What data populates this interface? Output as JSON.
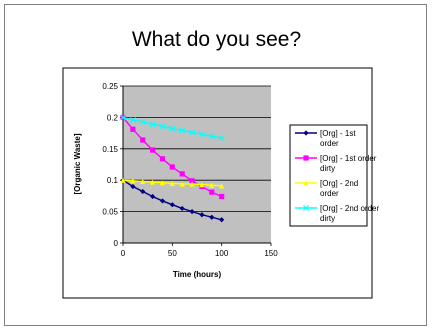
{
  "slide": {
    "title": "What do you see?"
  },
  "chart_data": {
    "type": "line",
    "title": "",
    "xlabel": "Time (hours)",
    "ylabel": "[Organic Waste]",
    "xlim": [
      0,
      150
    ],
    "ylim": [
      0,
      0.25
    ],
    "x_ticks": [
      0,
      50,
      100,
      150
    ],
    "x_tick_labels": [
      "0",
      "50",
      "100",
      "150"
    ],
    "y_ticks": [
      0,
      0.05,
      0.1,
      0.15,
      0.2,
      0.25
    ],
    "y_tick_labels": [
      "0",
      "0.05",
      "0.1",
      "0.15",
      "0.2",
      "0.25"
    ],
    "grid": "horizontal",
    "plot_background": "#c0c0c0",
    "legend_position": "right",
    "x": [
      0,
      10,
      20,
      30,
      40,
      50,
      60,
      70,
      80,
      90,
      100
    ],
    "series": [
      {
        "name": "[Org] - 1st order",
        "color": "#000080",
        "marker": "diamond",
        "values": [
          0.1,
          0.09,
          0.082,
          0.074,
          0.067,
          0.061,
          0.055,
          0.05,
          0.045,
          0.041,
          0.037
        ]
      },
      {
        "name": "[Org] - 1st order dirty",
        "color": "#ff00ff",
        "marker": "square",
        "values": [
          0.2,
          0.181,
          0.164,
          0.148,
          0.134,
          0.121,
          0.11,
          0.099,
          0.09,
          0.081,
          0.074
        ]
      },
      {
        "name": "[Org] - 2nd order",
        "color": "#ffff00",
        "marker": "triangle",
        "values": [
          0.1,
          0.099,
          0.098,
          0.097,
          0.096,
          0.095,
          0.094,
          0.094,
          0.093,
          0.092,
          0.091
        ]
      },
      {
        "name": "[Org] - 2nd order dirty",
        "color": "#00ffff",
        "marker": "x",
        "values": [
          0.2,
          0.196,
          0.193,
          0.189,
          0.186,
          0.182,
          0.179,
          0.176,
          0.173,
          0.17,
          0.167
        ]
      }
    ]
  }
}
